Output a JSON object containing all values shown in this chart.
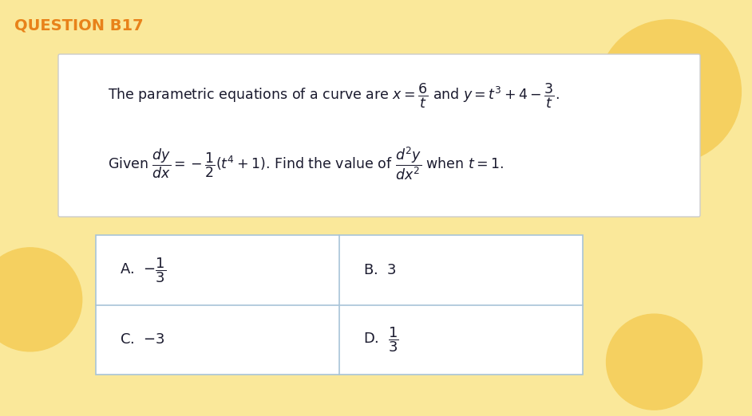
{
  "title": "QUESTION B17",
  "title_color": "#E8821A",
  "bg_color": "#FAE89A",
  "question_box_color": "#FFFFFF",
  "answer_box_color": "#FFFFFF",
  "answer_box_border": "#A8C4D8",
  "blob_color": "#F5D060",
  "text_color": "#1A1A2E",
  "fig_width": 9.42,
  "fig_height": 5.22,
  "dpi": 100
}
